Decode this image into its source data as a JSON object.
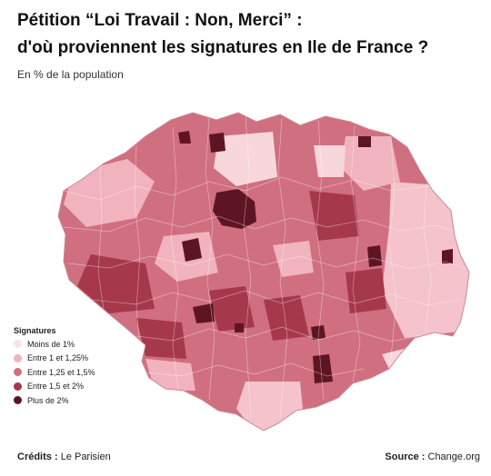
{
  "title_line1": "Pétition “Loi Travail : Non, Merci” :",
  "title_line2": "d'où proviennent les signatures en Ile de France ?",
  "subtitle": "En % de la population",
  "legend": {
    "title": "Signatures",
    "items": [
      {
        "label": "Moins de 1%",
        "color": "#fbe3e6"
      },
      {
        "label": "Entre 1 et 1,25%",
        "color": "#f1b3bd"
      },
      {
        "label": "Entre 1,25 et 1,5%",
        "color": "#d06f80"
      },
      {
        "label": "Entre 1,5 et 2%",
        "color": "#a6384c"
      },
      {
        "label": "Plus de 2%",
        "color": "#5e1523"
      }
    ]
  },
  "footer": {
    "credits_label": "Crédits :",
    "credits_value": "Le Parisien",
    "source_label": "Source :",
    "source_value": "Change.org"
  }
}
